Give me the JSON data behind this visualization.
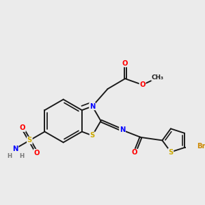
{
  "background_color": "#ebebeb",
  "bond_color": "#1a1a1a",
  "atom_colors": {
    "N": "#0000ff",
    "O": "#ff0000",
    "S": "#ccaa00",
    "Br": "#cc8800",
    "H": "#777777",
    "C": "#1a1a1a"
  },
  "bond_width": 1.4,
  "figsize": [
    3.0,
    3.0
  ],
  "dpi": 100
}
